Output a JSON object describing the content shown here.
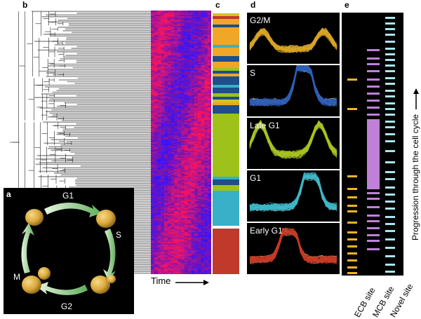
{
  "panel_letters": {
    "a": "a",
    "b": "b",
    "c": "c",
    "d": "d",
    "e": "e"
  },
  "cycle": {
    "labels": {
      "g1": "G1",
      "s": "S",
      "g2": "G2",
      "m": "M"
    },
    "arrow_color": "#7dc37a",
    "cell_color": "#d9a93a"
  },
  "time_axis": {
    "label": "Time"
  },
  "cluster_bar": {
    "blocks": [
      {
        "color": "#d4c22a",
        "weight": 1
      },
      {
        "color": "#c0392b",
        "weight": 1
      },
      {
        "color": "#f0a626",
        "weight": 2
      },
      {
        "color": "#1e4f8a",
        "weight": 1
      },
      {
        "color": "#f0a626",
        "weight": 6
      },
      {
        "color": "#38b0c8",
        "weight": 1
      },
      {
        "color": "#f0a626",
        "weight": 3
      },
      {
        "color": "#1e4f8a",
        "weight": 2
      },
      {
        "color": "#f0a626",
        "weight": 2
      },
      {
        "color": "#9ec21a",
        "weight": 1
      },
      {
        "color": "#1e4f8a",
        "weight": 1
      },
      {
        "color": "#f0a626",
        "weight": 1
      },
      {
        "color": "#1e4f8a",
        "weight": 3
      },
      {
        "color": "#38b0c8",
        "weight": 1
      },
      {
        "color": "#1e4f8a",
        "weight": 2
      },
      {
        "color": "#9ec21a",
        "weight": 1
      },
      {
        "color": "#1e4f8a",
        "weight": 1
      },
      {
        "color": "#d4c22a",
        "weight": 1
      },
      {
        "color": "#f0a626",
        "weight": 1
      },
      {
        "color": "#1e4f8a",
        "weight": 3
      },
      {
        "color": "#9ec21a",
        "weight": 22
      },
      {
        "color": "#38b0c8",
        "weight": 1
      },
      {
        "color": "#1e4f8a",
        "weight": 2
      },
      {
        "color": "#9ec21a",
        "weight": 2
      },
      {
        "color": "#38b0c8",
        "weight": 12
      },
      {
        "color": "#ffffff",
        "weight": 1
      },
      {
        "color": "#c0392b",
        "weight": 16
      }
    ]
  },
  "phases": [
    {
      "label": "G2/M",
      "color": "#d9a520"
    },
    {
      "label": "S",
      "color": "#2e5fb8"
    },
    {
      "label": "Late G1",
      "color": "#a7c31f"
    },
    {
      "label": "G1",
      "color": "#3cb9c9"
    },
    {
      "label": "Early G1",
      "color": "#c73a23"
    }
  ],
  "sites": {
    "labels": {
      "ecb": "ECB site",
      "mcb": "MCB site",
      "novel": "Novel site"
    },
    "colors": {
      "ecb": "#f2b428",
      "mcb": "#c080d8",
      "novel": "#a8e6ee"
    }
  },
  "progress_label": "Progression through the cell cycle"
}
